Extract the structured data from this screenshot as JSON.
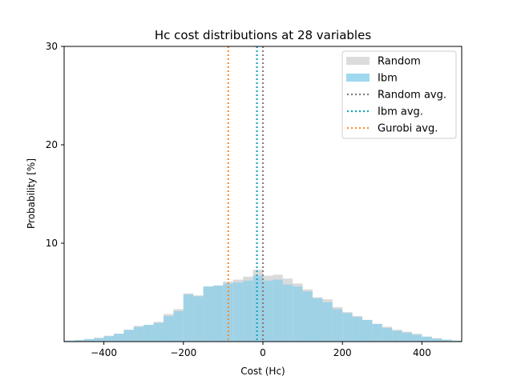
{
  "chart_data": {
    "type": "bar",
    "title": "Hc cost distributions at 28 variables",
    "xlabel": "Cost (Hc)",
    "ylabel": "Probability [%]",
    "xlim": [
      -500,
      500
    ],
    "ylim": [
      0,
      30
    ],
    "xticks": [
      -400,
      -200,
      0,
      200,
      400
    ],
    "yticks": [
      10,
      20,
      30
    ],
    "legend_position": "top-right",
    "bin_edges": [
      -500,
      -475,
      -450,
      -425,
      -400,
      -375,
      -350,
      -325,
      -300,
      -275,
      -250,
      -225,
      -200,
      -175,
      -150,
      -125,
      -100,
      -75,
      -50,
      -25,
      0,
      25,
      50,
      75,
      100,
      125,
      150,
      175,
      200,
      225,
      250,
      275,
      300,
      325,
      350,
      375,
      400,
      425,
      450,
      475,
      500
    ],
    "series": [
      {
        "name": "Random",
        "color": "#d3d3d3",
        "values": [
          0.1,
          0.15,
          0.25,
          0.4,
          0.6,
          0.8,
          1.2,
          1.6,
          1.7,
          2.0,
          2.8,
          3.3,
          4.9,
          4.7,
          5.6,
          5.7,
          6.1,
          6.3,
          6.6,
          7.3,
          6.7,
          6.8,
          6.4,
          5.9,
          5.3,
          4.5,
          4.3,
          3.5,
          3.0,
          2.6,
          2.2,
          1.8,
          1.5,
          1.2,
          1.0,
          0.8,
          0.5,
          0.35,
          0.2,
          0.1
        ]
      },
      {
        "name": "Ibm",
        "color": "#87ceeb",
        "values": [
          0.1,
          0.15,
          0.25,
          0.35,
          0.55,
          0.8,
          1.2,
          1.5,
          1.7,
          1.9,
          2.6,
          3.1,
          4.8,
          4.6,
          5.6,
          5.7,
          5.9,
          6.0,
          6.2,
          6.7,
          6.2,
          6.3,
          5.8,
          5.6,
          5.1,
          4.4,
          4.0,
          3.3,
          2.9,
          2.5,
          2.2,
          1.8,
          1.4,
          1.1,
          0.9,
          0.7,
          0.5,
          0.3,
          0.2,
          0.1
        ]
      }
    ],
    "averages": [
      {
        "name": "Random avg.",
        "x": 0,
        "color": "#7f7f7f"
      },
      {
        "name": "Ibm avg.",
        "x": -15,
        "color": "#17a6c6"
      },
      {
        "name": "Gurobi avg.",
        "x": -87,
        "color": "#ff8c2e"
      }
    ]
  }
}
